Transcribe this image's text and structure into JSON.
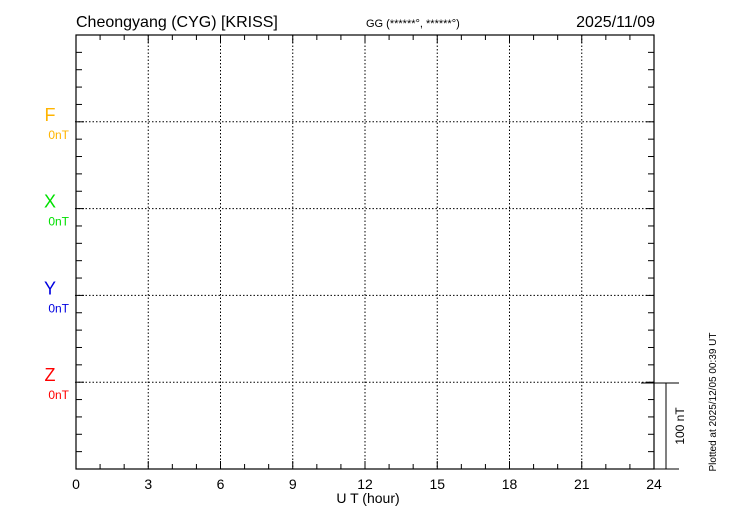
{
  "header": {
    "station": "Cheongyang (CYG)  [KRISS]",
    "coords": "GG (******°, ******°)",
    "date": "2025/11/09"
  },
  "footer": {
    "plotted": "Plotted at 2025/12/05 00:39 UT",
    "scale_label": "100 nT"
  },
  "chart_data": {
    "type": "line",
    "title": "Cheongyang (CYG)  [KRISS]",
    "xlabel": "U T (hour)",
    "xlim": [
      0,
      24
    ],
    "x_ticks": [
      "0",
      "3",
      "6",
      "9",
      "12",
      "15",
      "18",
      "21",
      "24"
    ],
    "grid": true,
    "scale_bar_nT": 100,
    "series": [
      {
        "name": "F",
        "baseline": "0nT",
        "color": "#ffb400",
        "values": []
      },
      {
        "name": "X",
        "baseline": "0nT",
        "color": "#00e000",
        "values": []
      },
      {
        "name": "Y",
        "baseline": "0nT",
        "color": "#0000e0",
        "values": []
      },
      {
        "name": "Z",
        "baseline": "0nT",
        "color": "#ff0000",
        "values": []
      }
    ]
  }
}
